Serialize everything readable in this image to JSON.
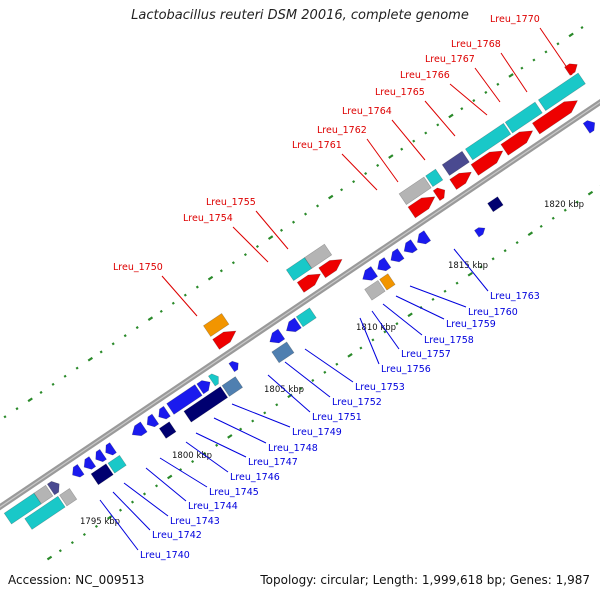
{
  "title": "Lactobacillus reuteri DSM 20016, complete genome",
  "footer": {
    "accession": "Accession: NC_009513",
    "info": "Topology: circular; Length: 1,999,618 bp; Genes: 1,987"
  },
  "colors": {
    "backbone": "#8c8c8c",
    "tick": "#2a8a2a",
    "label_top": "#dd0000",
    "label_bottom": "#0000dd",
    "blue": "#1a1aee",
    "navy": "#000070",
    "red": "#ee0000",
    "cyan": "#19c8c8",
    "orange": "#f29500",
    "steel": "#4f7fb0",
    "gray": "#b4b4b4",
    "slate": "#4a4a90"
  },
  "ruler_labels": [
    "1795 kbp",
    "1800 kbp",
    "1805 kbp",
    "1810 kbp",
    "1815 kbp",
    "1820 kbp"
  ],
  "top_labels": [
    "Lreu_1750",
    "Lreu_1754",
    "Lreu_1755",
    "Lreu_1761",
    "Lreu_1762",
    "Lreu_1764",
    "Lreu_1765",
    "Lreu_1766",
    "Lreu_1767",
    "Lreu_1768",
    "Lreu_1770"
  ],
  "bottom_labels": [
    "Lreu_1740",
    "Lreu_1742",
    "Lreu_1743",
    "Lreu_1744",
    "Lreu_1745",
    "Lreu_1746",
    "Lreu_1747",
    "Lreu_1748",
    "Lreu_1749",
    "Lreu_1751",
    "Lreu_1752",
    "Lreu_1753",
    "Lreu_1756",
    "Lreu_1757",
    "Lreu_1758",
    "Lreu_1759",
    "Lreu_1760",
    "Lreu_1763"
  ]
}
